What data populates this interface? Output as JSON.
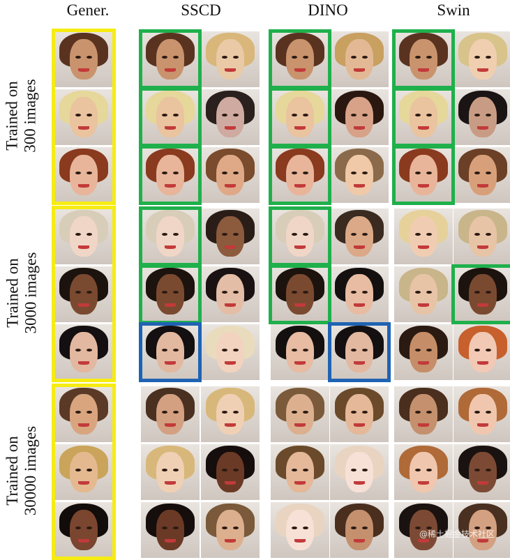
{
  "headers": [
    "Gener.",
    "SSCD",
    "DINO",
    "Swin"
  ],
  "row_labels": [
    {
      "line1": "Trained on",
      "line2": "300 images"
    },
    {
      "line1": "Trained on",
      "line2": "3000 images"
    },
    {
      "line1": "Trained on",
      "line2": "30000 images"
    }
  ],
  "watermark": "@稀土掘金技术社区",
  "colors": {
    "generated_frame": "#f6ec12",
    "match_frame": "#1fb04c",
    "near_match_frame": "#1f63b3"
  },
  "frames": [
    {
      "block": 0,
      "col": "gen",
      "row": null,
      "color": "yellow"
    },
    {
      "block": 0,
      "col": "sscd",
      "row": 0,
      "color": "green"
    },
    {
      "block": 0,
      "col": "sscd",
      "row": 1,
      "color": "green"
    },
    {
      "block": 0,
      "col": "sscd",
      "row": 2,
      "color": "green"
    },
    {
      "block": 0,
      "col": "dino",
      "row": 0,
      "color": "green"
    },
    {
      "block": 0,
      "col": "dino",
      "row": 1,
      "color": "green"
    },
    {
      "block": 0,
      "col": "dino",
      "row": 2,
      "color": "green"
    },
    {
      "block": 0,
      "col": "swin",
      "row": 0,
      "color": "green"
    },
    {
      "block": 0,
      "col": "swin",
      "row": 1,
      "color": "green"
    },
    {
      "block": 0,
      "col": "swin",
      "row": 2,
      "color": "green"
    },
    {
      "block": 1,
      "col": "gen",
      "row": null,
      "color": "yellow"
    },
    {
      "block": 1,
      "col": "sscd",
      "row": 0,
      "color": "green"
    },
    {
      "block": 1,
      "col": "sscd",
      "row": 1,
      "color": "green"
    },
    {
      "block": 1,
      "col": "sscd",
      "row": 2,
      "color": "blue"
    },
    {
      "block": 1,
      "col": "dino",
      "row": 0,
      "color": "green"
    },
    {
      "block": 1,
      "col": "dino",
      "row": 1,
      "color": "green"
    },
    {
      "block": 1,
      "col": "dino2",
      "row": 2,
      "color": "blue"
    },
    {
      "block": 1,
      "col": "swin2",
      "row": 1,
      "color": "green"
    },
    {
      "block": 2,
      "col": "gen",
      "row": null,
      "color": "yellow"
    }
  ],
  "palettes": [
    [
      [
        "#5a3320",
        "#c9936d"
      ],
      [
        "#e6d79a",
        "#eac39f"
      ],
      [
        "#8a3a1e",
        "#e8b59a"
      ]
    ],
    [
      [
        "#d8cdb8",
        "#f0d6c6"
      ],
      [
        "#1d130e",
        "#7a4a30"
      ],
      [
        "#140f10",
        "#e2b8a0"
      ]
    ],
    [
      [
        "#5a3a26",
        "#d9a57f"
      ],
      [
        "#c9a45a",
        "#e4b98f"
      ],
      [
        "#120c0a",
        "#7a4630"
      ]
    ]
  ],
  "matches": [
    [
      [
        "#5a3320",
        "#c9936d"
      ],
      [
        "#e6d79a",
        "#eac39f"
      ],
      [
        "#8a3a1e",
        "#e8b59a"
      ]
    ],
    [
      [
        "#d8cdb8",
        "#f0d6c6"
      ],
      [
        "#1d130e",
        "#7a4a30"
      ],
      [
        "#140f10",
        "#e2b8a0"
      ]
    ],
    [
      [
        "#5a3a26",
        "#d9a57f"
      ],
      [
        "#c9a45a",
        "#e4b98f"
      ],
      [
        "#120c0a",
        "#7a4630"
      ]
    ]
  ],
  "others": [
    [
      [
        "#6b4026",
        "#d8a07a"
      ],
      [
        "#d9b77a",
        "#eac9a6"
      ],
      [
        "#2a201d",
        "#cfaaa0"
      ],
      [
        "#7a4b2c",
        "#dfa987"
      ],
      [
        "#c8a060",
        "#e3b995"
      ],
      [
        "#2a1810",
        "#d7a288"
      ],
      [
        "#8a6a4a",
        "#f0c9a8"
      ],
      [
        "#d8c38a",
        "#f0cfb0"
      ],
      [
        "#1b1414",
        "#c89c84"
      ]
    ],
    [
      [
        "#c7602c",
        "#f1c9b5"
      ],
      [
        "#2a1d18",
        "#8c5a3d"
      ],
      [
        "#1a1212",
        "#e4bda6"
      ],
      [
        "#e9dcbc",
        "#f2d3bf"
      ],
      [
        "#3a2a20",
        "#dba988"
      ],
      [
        "#141010",
        "#e7bca3"
      ],
      [
        "#e6d19a",
        "#f0cdb2"
      ],
      [
        "#c9b58a",
        "#e7c4a6"
      ],
      [
        "#2a1a12",
        "#c58e68"
      ]
    ],
    [
      [
        "#4a3020",
        "#d3a081"
      ],
      [
        "#d8b87a",
        "#f0d0b4"
      ],
      [
        "#160e0c",
        "#6a3a26"
      ],
      [
        "#7a5a3a",
        "#dcb08f"
      ],
      [
        "#6a4a2a",
        "#e4b898"
      ],
      [
        "#e8d4c0",
        "#f7e1d6"
      ],
      [
        "#4a2e1e",
        "#c4906e"
      ],
      [
        "#b06a38",
        "#f0c7ae"
      ],
      [
        "#1a1210",
        "#7c4a34"
      ]
    ]
  ]
}
